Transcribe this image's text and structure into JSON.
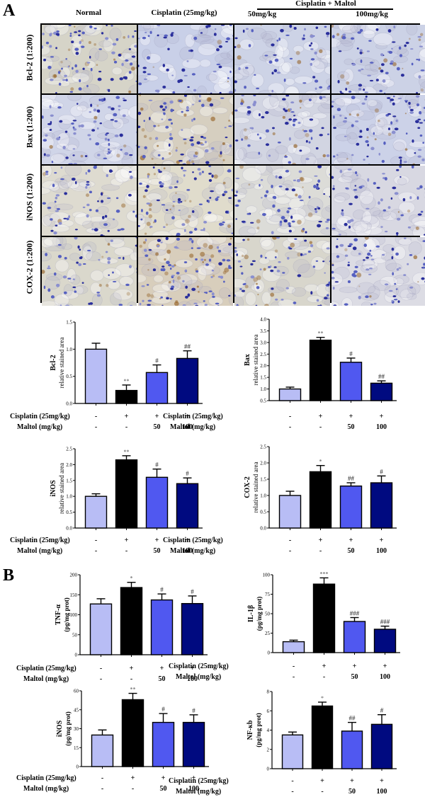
{
  "panels": {
    "A": {
      "letter": "A"
    },
    "B": {
      "letter": "B"
    }
  },
  "micrograph_grid": {
    "column_headers": [
      "Normal",
      "Cisplatin (25mg/kg)",
      "50mg/kg",
      "100mg/kg"
    ],
    "group_header": "Cisplatin + Maltol",
    "row_labels": [
      "Bcl-2 (1:200)",
      "Bax (1:200)",
      "iNOS (1:200)",
      "COX-2 (1:200)"
    ],
    "tiles": [
      [
        "bcl2-normal",
        "bcl2-cisplatin",
        "bcl2-maltol50",
        "bcl2-maltol100"
      ],
      [
        "bax-normal",
        "bax-cisplatin",
        "bax-maltol50",
        "bax-maltol100"
      ],
      [
        "inos-normal",
        "inos-cisplatin",
        "inos-maltol50",
        "inos-maltol100"
      ],
      [
        "cox2-normal",
        "cox2-cisplatin",
        "cox2-maltol50",
        "cox2-maltol100"
      ]
    ]
  },
  "conditions": {
    "cisplatin_label": "Cisplatin (25mg/kg)",
    "maltol_label": "Maltol (mg/kg)",
    "cisplatin_values": [
      "-",
      "+",
      "+",
      "+"
    ],
    "maltol_values": [
      "-",
      "-",
      "50",
      "100"
    ]
  },
  "colors": {
    "normal": "#b8bdf5",
    "cisplatin": "#000000",
    "maltol50": "#5058f0",
    "maltol100": "#000a80"
  },
  "chart_data": [
    {
      "id": "bcl2-ihc",
      "panel": "A",
      "type": "bar",
      "title": "",
      "ylabel": "Bcl-2 relative stained area",
      "ylabel_lines": [
        "Bcl-2",
        "relative stained area"
      ],
      "categories": [
        "Normal",
        "Cisplatin",
        "Cisplatin+Maltol 50",
        "Cisplatin+Maltol 100"
      ],
      "values": [
        1.0,
        0.24,
        0.57,
        0.83
      ],
      "errors": [
        0.11,
        0.1,
        0.14,
        0.14
      ],
      "annotations": [
        "",
        "**",
        "#",
        "##"
      ],
      "ylim": [
        0,
        1.5
      ],
      "yticks": [
        0.0,
        0.5,
        1.0,
        1.5
      ],
      "ytick_labels": [
        "0.0",
        "0.5",
        "1.0",
        "1.5"
      ],
      "cisplatin_row": [
        "-",
        "+",
        "+",
        "+"
      ],
      "maltol_row": [
        "-",
        "-",
        "50",
        "100"
      ]
    },
    {
      "id": "bax-ihc",
      "panel": "A",
      "type": "bar",
      "title": "",
      "ylabel": "Bax relative stained area",
      "ylabel_lines": [
        "Bax",
        "relative stained area"
      ],
      "categories": [
        "Normal",
        "Cisplatin",
        "Cisplatin+Maltol 50",
        "Cisplatin+Maltol 100"
      ],
      "values": [
        1.0,
        3.1,
        2.15,
        1.25
      ],
      "errors": [
        0.08,
        0.12,
        0.18,
        0.1
      ],
      "annotations": [
        "",
        "**",
        "#",
        "##"
      ],
      "ylim": [
        0.5,
        4.0
      ],
      "yticks": [
        0.5,
        1.0,
        1.5,
        2.0,
        2.5,
        3.0,
        3.5,
        4.0
      ],
      "ytick_labels": [
        "0.5",
        "1.0",
        "1.5",
        "2.0",
        "2.5",
        "3.0",
        "3.5",
        "4.0"
      ],
      "cisplatin_row": [
        "-",
        "+",
        "+",
        "+"
      ],
      "maltol_row": [
        "-",
        "-",
        "50",
        "100"
      ]
    },
    {
      "id": "inos-ihc",
      "panel": "A",
      "type": "bar",
      "title": "",
      "ylabel": "iNOS relative stained area",
      "ylabel_lines": [
        "iNOS",
        "relative stained area"
      ],
      "categories": [
        "Normal",
        "Cisplatin",
        "Cisplatin+Maltol 50",
        "Cisplatin+Maltol 100"
      ],
      "values": [
        1.0,
        2.15,
        1.6,
        1.4
      ],
      "errors": [
        0.08,
        0.13,
        0.26,
        0.18
      ],
      "annotations": [
        "",
        "**",
        "#",
        "#"
      ],
      "ylim": [
        0,
        2.5
      ],
      "yticks": [
        0.0,
        0.5,
        1.0,
        1.5,
        2.0,
        2.5
      ],
      "ytick_labels": [
        "0.0",
        "0.5",
        "1.0",
        "1.5",
        "2.0",
        "2.5"
      ],
      "cisplatin_row": [
        "-",
        "+",
        "+",
        "+"
      ],
      "maltol_row": [
        "-",
        "-",
        "50",
        "100"
      ]
    },
    {
      "id": "cox2-ihc",
      "panel": "A",
      "type": "bar",
      "title": "",
      "ylabel": "COX-2 relative stained area",
      "ylabel_lines": [
        "COX-2",
        "relative stained area"
      ],
      "categories": [
        "Normal",
        "Cisplatin",
        "Cisplatin+Maltol 50",
        "Cisplatin+Maltol 100"
      ],
      "values": [
        1.0,
        1.73,
        1.29,
        1.39
      ],
      "errors": [
        0.13,
        0.19,
        0.1,
        0.21
      ],
      "annotations": [
        "",
        "*",
        "##",
        "#"
      ],
      "ylim": [
        0,
        2.5
      ],
      "yticks": [
        0.0,
        0.5,
        1.0,
        1.5,
        2.0,
        2.5
      ],
      "ytick_labels": [
        "0.0",
        "0.5",
        "1.0",
        "1.5",
        "2.0",
        "2.5"
      ],
      "cisplatin_row": [
        "-",
        "+",
        "+",
        "+"
      ],
      "maltol_row": [
        "-",
        "-",
        "50",
        "100"
      ]
    },
    {
      "id": "tnf-alpha",
      "panel": "B",
      "type": "bar",
      "title": "",
      "ylabel": "TNF-α (pg/mg prot)",
      "ylabel_lines": [
        "TNF-α",
        "(pg/mg prot)"
      ],
      "categories": [
        "Normal",
        "Cisplatin",
        "Cisplatin+Maltol 50",
        "Cisplatin+Maltol 100"
      ],
      "values": [
        127,
        168,
        137,
        128
      ],
      "errors": [
        13,
        13,
        15,
        19
      ],
      "annotations": [
        "",
        "*",
        "#",
        "#"
      ],
      "ylim": [
        0,
        200
      ],
      "yticks": [
        0,
        50,
        100,
        150,
        200
      ],
      "ytick_labels": [
        "0",
        "50",
        "100",
        "150",
        "200"
      ],
      "cisplatin_row": [
        "-",
        "+",
        "+",
        "+"
      ],
      "maltol_row": [
        "-",
        "-",
        "50",
        "100"
      ]
    },
    {
      "id": "il-1beta",
      "panel": "B",
      "type": "bar",
      "title": "",
      "ylabel": "IL-1β (pg/mg prot)",
      "ylabel_lines": [
        "IL-1β",
        "(pg/mg prot)"
      ],
      "categories": [
        "Normal",
        "Cisplatin",
        "Cisplatin+Maltol 50",
        "Cisplatin+Maltol 100"
      ],
      "values": [
        14,
        88,
        40,
        30
      ],
      "errors": [
        2,
        8,
        5,
        4
      ],
      "annotations": [
        "",
        "***",
        "###",
        "###"
      ],
      "ylim": [
        0,
        100
      ],
      "yticks": [
        0,
        25,
        50,
        75,
        100
      ],
      "ytick_labels": [
        "0",
        "25",
        "50",
        "75",
        "100"
      ],
      "cisplatin_row": [
        "-",
        "+",
        "+",
        "+"
      ],
      "maltol_row": [
        "-",
        "-",
        "50",
        "100"
      ]
    },
    {
      "id": "inos-elisa",
      "panel": "B",
      "type": "bar",
      "title": "",
      "ylabel": "iNOS (pg/mg prot)",
      "ylabel_lines": [
        "iNOS",
        "(pg/mg prot)"
      ],
      "categories": [
        "Normal",
        "Cisplatin",
        "Cisplatin+Maltol 50",
        "Cisplatin+Maltol 100"
      ],
      "values": [
        25,
        53,
        35,
        35
      ],
      "errors": [
        4,
        5,
        7,
        6
      ],
      "annotations": [
        "",
        "**",
        "#",
        "#"
      ],
      "ylim": [
        0,
        60
      ],
      "yticks": [
        0,
        15,
        30,
        45,
        60
      ],
      "ytick_labels": [
        "0",
        "15",
        "30",
        "45",
        "60"
      ],
      "cisplatin_row": [
        "-",
        "+",
        "+",
        "+"
      ],
      "maltol_row": [
        "-",
        "-",
        "50",
        "100"
      ]
    },
    {
      "id": "nf-kb",
      "panel": "B",
      "type": "bar",
      "title": "",
      "ylabel": "NF-κb (pg/mg prot)",
      "ylabel_lines": [
        "NF-κb",
        "(pg/mg prot)"
      ],
      "categories": [
        "Normal",
        "Cisplatin",
        "Cisplatin+Maltol 50",
        "Cisplatin+Maltol 100"
      ],
      "values": [
        3.5,
        6.5,
        3.9,
        4.6
      ],
      "errors": [
        0.3,
        0.4,
        0.9,
        1.0
      ],
      "annotations": [
        "",
        "*",
        "##",
        "#"
      ],
      "ylim": [
        0,
        8
      ],
      "yticks": [
        0,
        2,
        4,
        6,
        8
      ],
      "ytick_labels": [
        "0",
        "2",
        "4",
        "6",
        "8"
      ],
      "cisplatin_row": [
        "-",
        "+",
        "+",
        "+"
      ],
      "maltol_row": [
        "-",
        "-",
        "50",
        "100"
      ]
    }
  ]
}
